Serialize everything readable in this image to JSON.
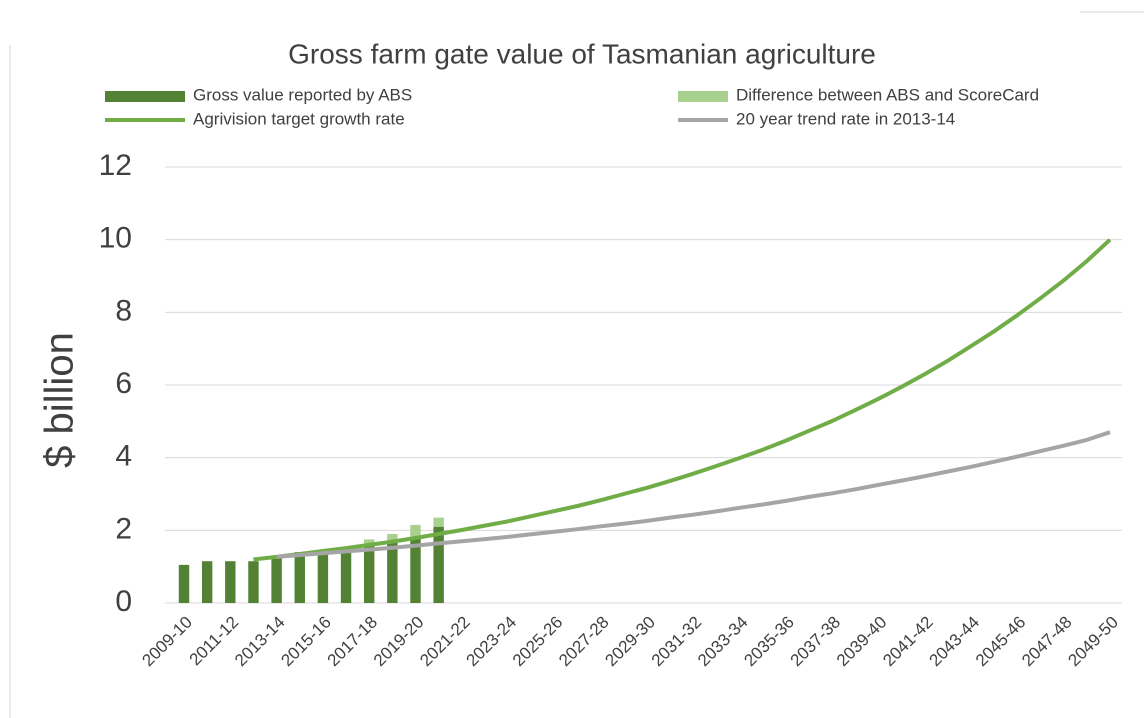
{
  "chart_data": {
    "type": "bar",
    "title": "Gross farm gate value of Tasmanian agriculture",
    "y_label": "$ billion",
    "categories": [
      "2009-10",
      null,
      "2011-12",
      null,
      "2013-14",
      null,
      "2015-16",
      null,
      "2017-18",
      null,
      "2019-20",
      null,
      "2021-22",
      null,
      "2023-24",
      null,
      "2025-26",
      null,
      "2027-28",
      null,
      "2029-30",
      null,
      "2031-32",
      null,
      "2033-34",
      null,
      "2035-36",
      null,
      "2037-38",
      null,
      "2039-40",
      null,
      "2041-42",
      null,
      "2043-44",
      null,
      "2045-46",
      null,
      "2047-48",
      null,
      "2049-50"
    ],
    "series": [
      {
        "name": "Gross value reported by ABS",
        "type": "bar",
        "color": "#548235",
        "values": [
          1.05,
          1.15,
          1.15,
          1.15,
          1.25,
          1.4,
          1.45,
          1.5,
          1.6,
          1.7,
          1.8,
          2.1,
          null,
          null,
          null,
          null,
          null,
          null,
          null,
          null,
          null,
          null,
          null,
          null,
          null,
          null,
          null,
          null,
          null,
          null,
          null,
          null,
          null,
          null,
          null,
          null,
          null,
          null,
          null,
          null,
          null
        ]
      },
      {
        "name": "Difference between ABS and ScoreCard",
        "type": "bar",
        "stacked": true,
        "color": "#a9d18e",
        "values": [
          null,
          null,
          null,
          null,
          null,
          null,
          null,
          null,
          0.15,
          0.2,
          0.35,
          0.25,
          null,
          null,
          null,
          null,
          null,
          null,
          null,
          null,
          null,
          null,
          null,
          null,
          null,
          null,
          null,
          null,
          null,
          null,
          null,
          null,
          null,
          null,
          null,
          null,
          null,
          null,
          null,
          null,
          null
        ]
      },
      {
        "name": "Agrivision target growth rate",
        "type": "line",
        "color": "#70ad47",
        "values": [
          null,
          null,
          null,
          1.2,
          1.27,
          1.35,
          1.43,
          1.51,
          1.6,
          1.69,
          1.79,
          1.9,
          2.01,
          2.13,
          2.25,
          2.39,
          2.53,
          2.67,
          2.83,
          3.0,
          3.17,
          3.36,
          3.56,
          3.77,
          3.99,
          4.22,
          4.47,
          4.74,
          5.01,
          5.31,
          5.62,
          5.95,
          6.3,
          6.67,
          7.07,
          7.48,
          7.92,
          8.39,
          8.88,
          9.41,
          10.0
        ]
      },
      {
        "name": "20 year trend rate in 2013-14",
        "type": "line",
        "color": "#a5a5a5",
        "values": [
          null,
          null,
          null,
          null,
          1.27,
          1.32,
          1.37,
          1.42,
          1.47,
          1.52,
          1.58,
          1.64,
          1.7,
          1.76,
          1.82,
          1.89,
          1.96,
          2.03,
          2.11,
          2.18,
          2.26,
          2.35,
          2.43,
          2.52,
          2.62,
          2.71,
          2.81,
          2.92,
          3.02,
          3.13,
          3.25,
          3.37,
          3.49,
          3.62,
          3.75,
          3.89,
          4.03,
          4.18,
          4.33,
          4.49,
          4.7
        ]
      }
    ],
    "ylim": [
      0,
      12
    ],
    "yticks": [
      0,
      2,
      4,
      6,
      8,
      10,
      12
    ],
    "grid": true
  }
}
